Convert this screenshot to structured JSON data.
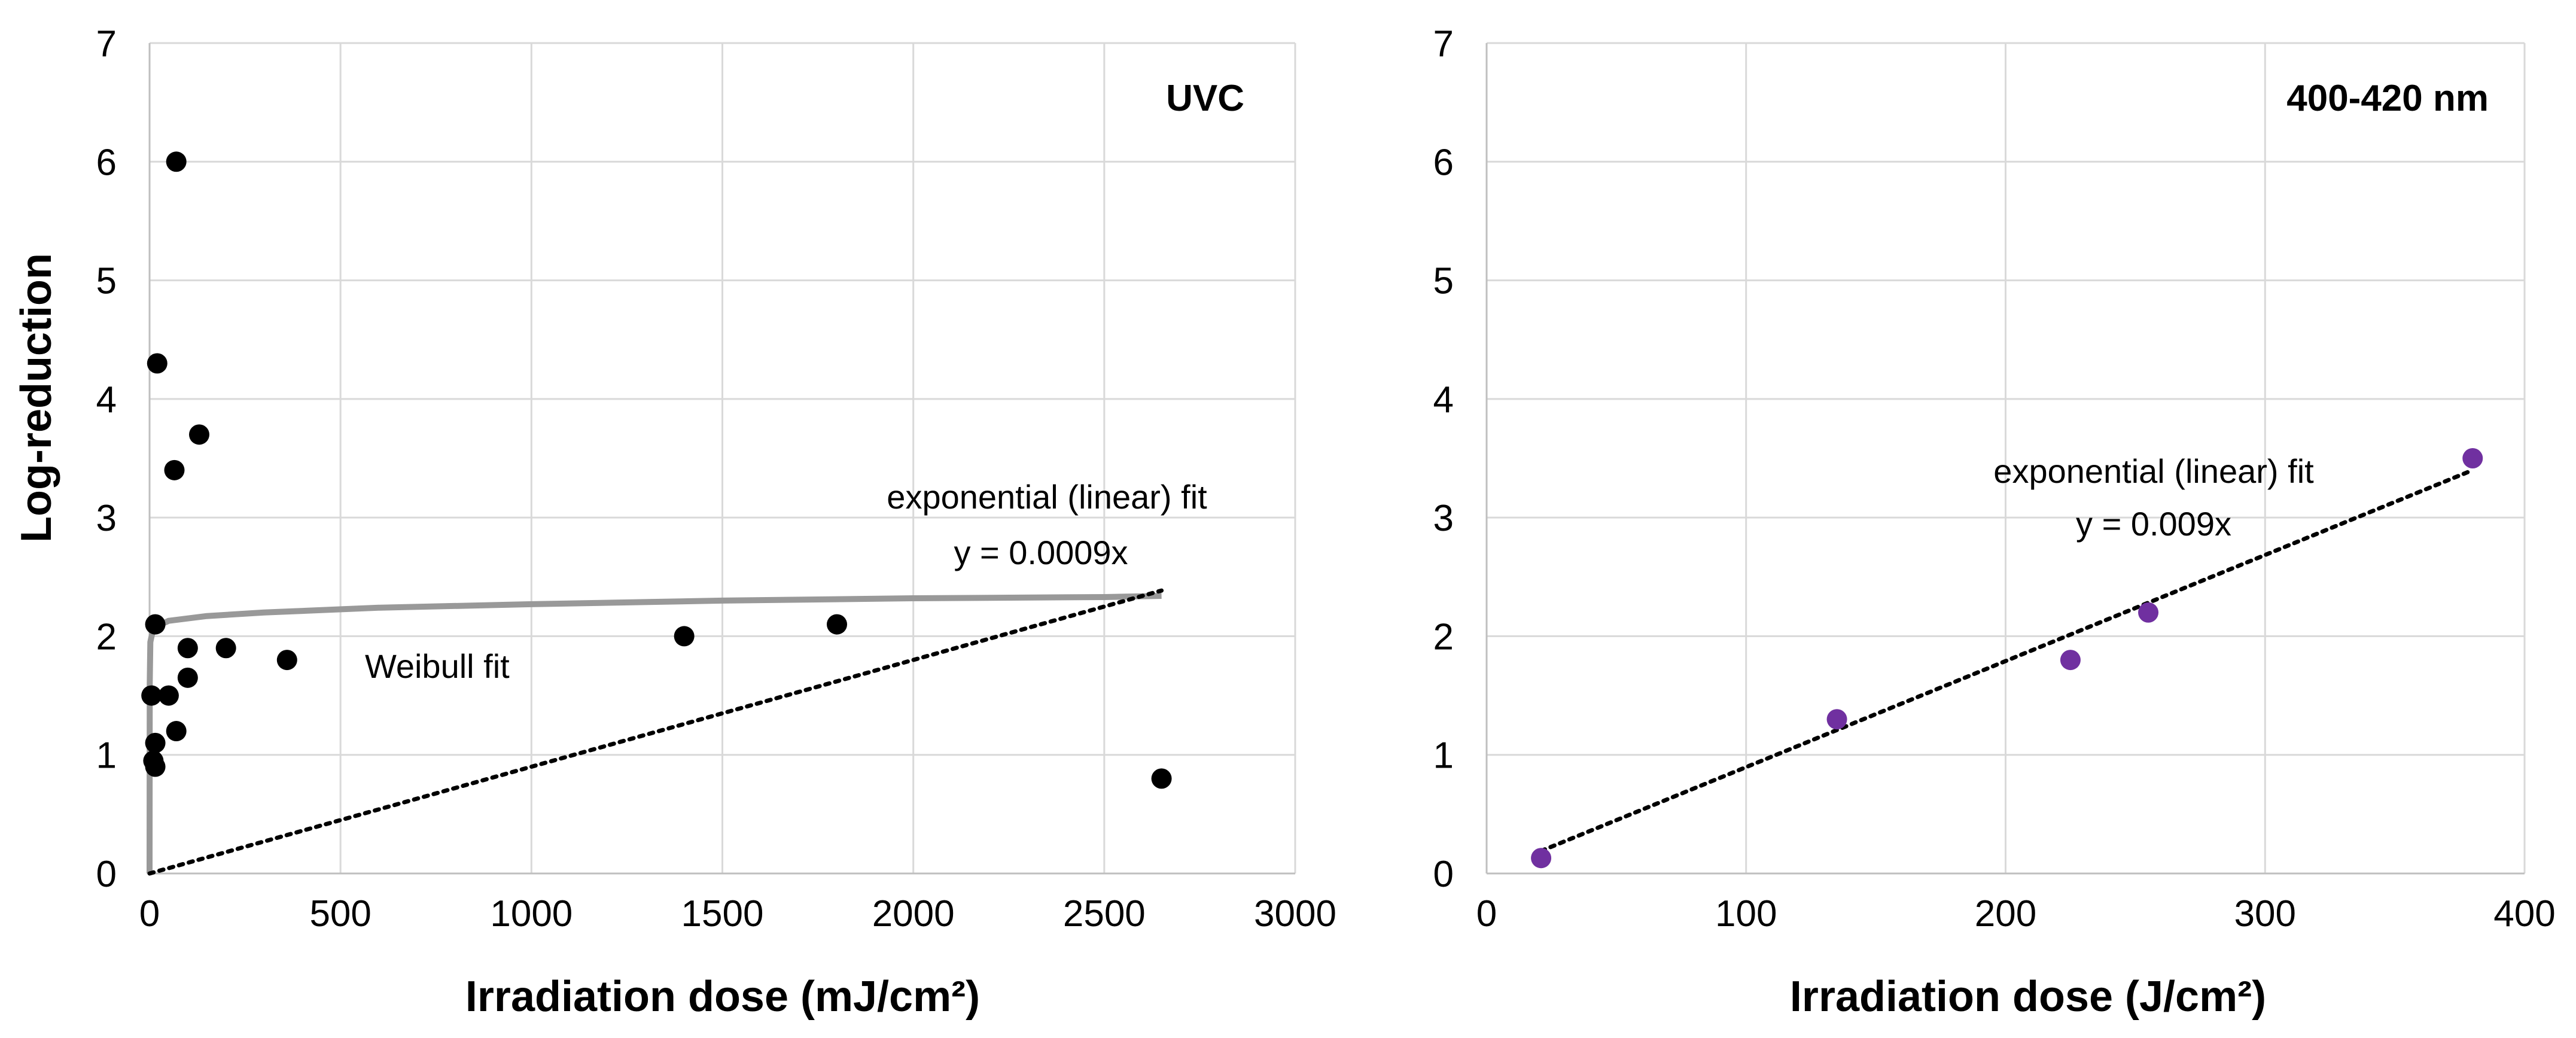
{
  "colors": {
    "left_points": "#000000",
    "right_points": "#7030a0",
    "weibull_line": "#999999",
    "linear_fit": "#000000",
    "grid": "#d9d9d9"
  },
  "chart_data": [
    {
      "type": "scatter",
      "title": "UVC",
      "xlabel": "Irradiation dose (mJ/cm²)",
      "ylabel": "Log-reduction",
      "xlim": [
        0,
        3000
      ],
      "ylim": [
        0,
        7
      ],
      "xticks": [
        "0",
        "500",
        "1000",
        "1500",
        "2000",
        "2500",
        "3000"
      ],
      "yticks": [
        "0",
        "1",
        "2",
        "3",
        "4",
        "5",
        "6",
        "7"
      ],
      "grid": true,
      "points": [
        {
          "x": 70,
          "y": 6.0
        },
        {
          "x": 20,
          "y": 4.3
        },
        {
          "x": 130,
          "y": 3.7
        },
        {
          "x": 65,
          "y": 3.4
        },
        {
          "x": 15,
          "y": 2.1
        },
        {
          "x": 100,
          "y": 1.9
        },
        {
          "x": 200,
          "y": 1.9
        },
        {
          "x": 360,
          "y": 1.8
        },
        {
          "x": 100,
          "y": 1.65
        },
        {
          "x": 5,
          "y": 1.5
        },
        {
          "x": 50,
          "y": 1.5
        },
        {
          "x": 70,
          "y": 1.2
        },
        {
          "x": 15,
          "y": 1.1
        },
        {
          "x": 10,
          "y": 0.95
        },
        {
          "x": 15,
          "y": 0.9
        },
        {
          "x": 1400,
          "y": 2.0
        },
        {
          "x": 1800,
          "y": 2.1
        },
        {
          "x": 2650,
          "y": 0.8
        }
      ],
      "weibull_fit": {
        "label": "Weibull fit",
        "curve": [
          {
            "x": 0,
            "y": 0
          },
          {
            "x": 0.5,
            "y": 1.6
          },
          {
            "x": 2,
            "y": 1.95
          },
          {
            "x": 10,
            "y": 2.07
          },
          {
            "x": 50,
            "y": 2.13
          },
          {
            "x": 150,
            "y": 2.17
          },
          {
            "x": 300,
            "y": 2.2
          },
          {
            "x": 600,
            "y": 2.24
          },
          {
            "x": 1000,
            "y": 2.27
          },
          {
            "x": 1500,
            "y": 2.3
          },
          {
            "x": 2000,
            "y": 2.32
          },
          {
            "x": 2500,
            "y": 2.33
          },
          {
            "x": 2650,
            "y": 2.34
          }
        ]
      },
      "linear_fit": {
        "label": "exponential (linear) fit",
        "equation": "y = 0.0009x",
        "slope": 0.0009,
        "x_range": [
          0,
          2650
        ]
      }
    },
    {
      "type": "scatter",
      "title": "400-420 nm",
      "xlabel": "Irradiation dose (J/cm²)",
      "ylabel": "",
      "xlim": [
        0,
        400
      ],
      "ylim": [
        0,
        7
      ],
      "xticks": [
        "0",
        "100",
        "200",
        "300",
        "400"
      ],
      "yticks": [
        "0",
        "1",
        "2",
        "3",
        "4",
        "5",
        "6",
        "7"
      ],
      "grid": true,
      "points": [
        {
          "x": 21,
          "y": 0.13
        },
        {
          "x": 135,
          "y": 1.3
        },
        {
          "x": 225,
          "y": 1.8
        },
        {
          "x": 255,
          "y": 2.2
        },
        {
          "x": 380,
          "y": 3.5
        }
      ],
      "linear_fit": {
        "label": "exponential (linear) fit",
        "equation": "y = 0.009x",
        "line": [
          {
            "x": 21,
            "y": 0.19
          },
          {
            "x": 380,
            "y": 3.4
          }
        ]
      }
    }
  ]
}
